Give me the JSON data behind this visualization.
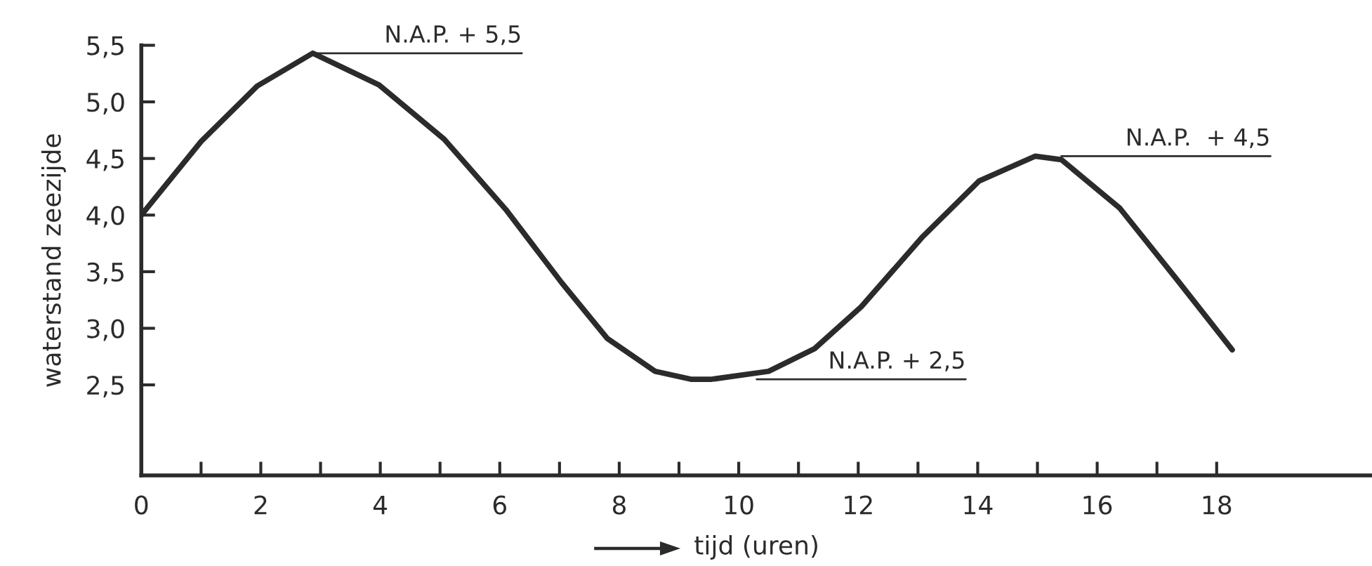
{
  "chart_data": {
    "type": "line",
    "xlabel": "tijd (uren)",
    "ylabel": "waterstand zeezijde",
    "x": [
      0,
      1.0,
      1.94,
      2.87,
      3.98,
      5.07,
      6.1,
      7.04,
      7.8,
      8.6,
      9.2,
      9.55,
      10.5,
      11.27,
      12.05,
      13.08,
      14.02,
      14.96,
      15.4,
      16.38,
      17.32,
      18.26
    ],
    "series": [
      {
        "color": "#2b2b2b",
        "values": [
          4.0,
          4.65,
          5.14,
          5.43,
          5.15,
          4.67,
          4.05,
          3.4,
          2.91,
          2.62,
          2.55,
          2.55,
          2.62,
          2.82,
          3.19,
          3.81,
          4.3,
          4.52,
          4.49,
          4.06,
          3.44,
          2.81
        ]
      }
    ],
    "annotations": [
      {
        "text": "N.A.P. + 5,5",
        "x": 2.87,
        "y": 5.43
      },
      {
        "text": "N.A.P. + 2,5",
        "x": 10.3,
        "y": 2.55
      },
      {
        "text": "N.A.P.  + 4,5",
        "x": 15.4,
        "y": 4.52
      }
    ],
    "xlim": [
      0,
      20.6
    ],
    "ylim": [
      1.7,
      5.5
    ],
    "xticks": [
      0,
      {
        "value": 1,
        "label": null
      },
      2,
      {
        "value": 3,
        "label": null
      },
      4,
      {
        "value": 5,
        "label": null
      },
      6,
      {
        "value": 7,
        "label": null
      },
      8,
      {
        "value": 9,
        "label": null
      },
      10,
      {
        "value": 11,
        "label": null
      },
      12,
      {
        "value": 13,
        "label": null
      },
      14,
      {
        "value": 15,
        "label": null
      },
      16,
      {
        "value": 17,
        "label": null
      },
      18
    ],
    "yticks": [
      {
        "value": 2.5,
        "label": "2,5"
      },
      {
        "value": 3.0,
        "label": "3,0"
      },
      {
        "value": 3.5,
        "label": "3,5"
      },
      {
        "value": 4.0,
        "label": "4,0"
      },
      {
        "value": 4.5,
        "label": "4,5"
      },
      {
        "value": 5.0,
        "label": "5,0"
      },
      {
        "value": 5.5,
        "label": "5,5"
      }
    ],
    "grid": false,
    "legend": false,
    "marker": "none",
    "line_style": "solid"
  }
}
